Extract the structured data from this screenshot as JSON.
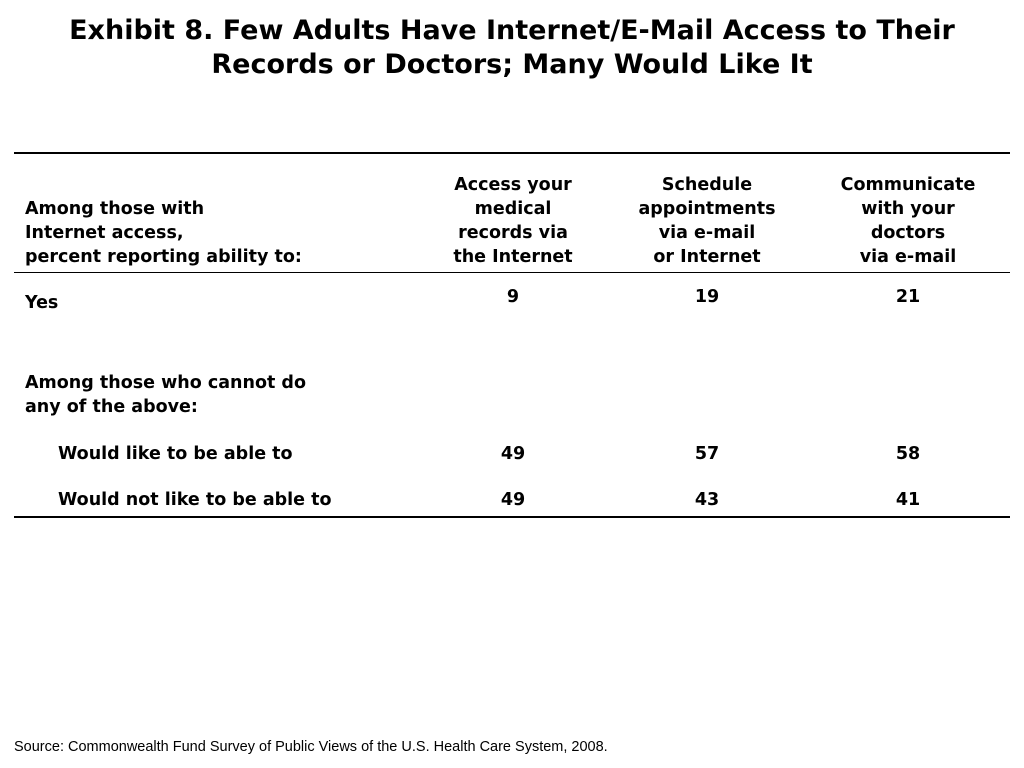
{
  "title": {
    "line1": "Exhibit 8. Few Adults Have Internet/E-Mail Access to Their",
    "line2": "Records or Doctors; Many Would Like It"
  },
  "table": {
    "stub_header": [
      "Among those with",
      "Internet access,",
      "percent reporting ability to:"
    ],
    "columns": [
      [
        "Access your",
        "medical",
        "records via",
        "the Internet"
      ],
      [
        "Schedule",
        "appointments",
        "via e-mail",
        "or Internet"
      ],
      [
        "Communicate",
        "with your",
        "doctors",
        "via e-mail"
      ]
    ],
    "rows": {
      "yes": {
        "label": "Yes",
        "values": [
          "9",
          "19",
          "21"
        ]
      },
      "section_label": [
        "Among those who cannot do",
        "any of the above:"
      ],
      "would_like": {
        "label": "Would like to be able to",
        "values": [
          "49",
          "57",
          "58"
        ]
      },
      "would_not_like": {
        "label": "Would not like to be able to",
        "values": [
          "49",
          "43",
          "41"
        ]
      }
    }
  },
  "source": "Source: Commonwealth Fund Survey of Public Views of the U.S. Health Care System, 2008."
}
